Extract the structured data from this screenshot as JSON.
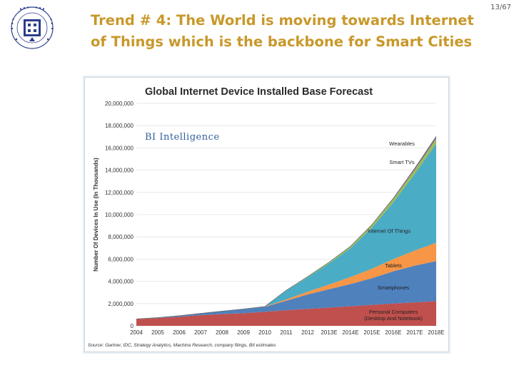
{
  "slide": {
    "page_number": "13/67",
    "title_line1": "Trend # 4: The World is moving towards Internet",
    "title_line2": "of Things which is the backbone for Smart Cities",
    "title_color": "#c8982a"
  },
  "chart_data": {
    "type": "area",
    "stacked": true,
    "title": "Global Internet Device Installed Base Forecast",
    "brand": "BI Intelligence",
    "ylabel": "Number Of Devices In Use (In Thousands)",
    "xlabel": "",
    "ylim": [
      0,
      20000000
    ],
    "yticks": [
      "0",
      "2,000,000",
      "4,000,000",
      "6,000,000",
      "8,000,000",
      "10,000,000",
      "12,000,000",
      "14,000,000",
      "16,000,000",
      "18,000,000",
      "20,000,000"
    ],
    "ytick_values": [
      0,
      2000000,
      4000000,
      6000000,
      8000000,
      10000000,
      12000000,
      14000000,
      16000000,
      18000000,
      20000000
    ],
    "categories": [
      "2004",
      "2005",
      "2006",
      "2007",
      "2008",
      "2009",
      "2010",
      "2011",
      "2012",
      "2013E",
      "2014E",
      "2015E",
      "2016E",
      "2017E",
      "2018E"
    ],
    "grid": true,
    "series": [
      {
        "name": "Personal Computers (Desktop And Notebook)",
        "label_lines": [
          "Personal Computers",
          "(Desktop And Notebook)"
        ],
        "color": "#c0504d",
        "values": [
          600000,
          700000,
          820000,
          960000,
          1060000,
          1130000,
          1260000,
          1400000,
          1520000,
          1640000,
          1760000,
          1880000,
          2000000,
          2110000,
          2220000
        ]
      },
      {
        "name": "Smartphones",
        "label_lines": [
          "Smartphones"
        ],
        "color": "#4f81bd",
        "values": [
          20000,
          40000,
          90000,
          160000,
          260000,
          380000,
          450000,
          850000,
          1300000,
          1650000,
          2000000,
          2400000,
          2900000,
          3300000,
          3600000
        ]
      },
      {
        "name": "Tablets",
        "label_lines": [
          "Tablets"
        ],
        "color": "#f79646",
        "values": [
          0,
          0,
          0,
          0,
          0,
          0,
          30000,
          120000,
          250000,
          420000,
          620000,
          850000,
          1100000,
          1350000,
          1650000
        ]
      },
      {
        "name": "Internet Of Things",
        "label_lines": [
          "Internet Of Things"
        ],
        "color": "#4bacc6",
        "values": [
          0,
          0,
          0,
          0,
          0,
          0,
          0,
          800000,
          1300000,
          1900000,
          2600000,
          3700000,
          5100000,
          6900000,
          8900000
        ]
      },
      {
        "name": "Smart TVs",
        "label_lines": [
          "Smart TVs"
        ],
        "color": "#9bbb59",
        "values": [
          0,
          0,
          0,
          0,
          0,
          0,
          0,
          30000,
          60000,
          100000,
          150000,
          220000,
          300000,
          380000,
          470000
        ]
      },
      {
        "name": "Wearables",
        "label_lines": [
          "Wearables"
        ],
        "color": "#8064a2",
        "values": [
          0,
          0,
          0,
          0,
          0,
          0,
          0,
          0,
          0,
          10000,
          25000,
          50000,
          80000,
          130000,
          190000
        ]
      }
    ],
    "source": "Source: Gartner, IDC, Strategy Analytics, Machina Research, company filings, BII estimates"
  }
}
